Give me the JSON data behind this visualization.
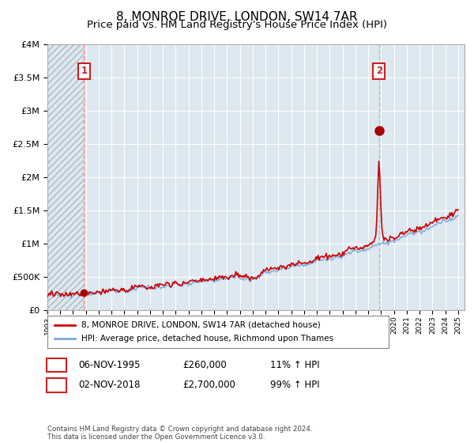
{
  "title": "8, MONROE DRIVE, LONDON, SW14 7AR",
  "subtitle": "Price paid vs. HM Land Registry's House Price Index (HPI)",
  "ylim": [
    0,
    4000000
  ],
  "yticks": [
    0,
    500000,
    1000000,
    1500000,
    2000000,
    2500000,
    3000000,
    3500000,
    4000000
  ],
  "ytick_labels": [
    "£0",
    "£500K",
    "£1M",
    "£1.5M",
    "£2M",
    "£2.5M",
    "£3M",
    "£3.5M",
    "£4M"
  ],
  "sale1_date": 1995.85,
  "sale1_price": 260000,
  "sale1_label": "1",
  "sale2_date": 2018.84,
  "sale2_price": 2700000,
  "sale2_label": "2",
  "line_color_property": "#cc0000",
  "line_color_hpi": "#7aaadd",
  "marker_color": "#aa0000",
  "vline1_color": "#ff8888",
  "vline2_color": "#aabbcc",
  "background_color": "#ffffff",
  "chart_bg_color": "#dde8f0",
  "hatch_color": "#c8c8c8",
  "grid_color": "#ffffff",
  "legend_line1": "8, MONROE DRIVE, LONDON, SW14 7AR (detached house)",
  "legend_line2": "HPI: Average price, detached house, Richmond upon Thames",
  "footer": "Contains HM Land Registry data © Crown copyright and database right 2024.\nThis data is licensed under the Open Government Licence v3.0.",
  "title_fontsize": 11,
  "subtitle_fontsize": 9.5,
  "tick_fontsize": 8
}
